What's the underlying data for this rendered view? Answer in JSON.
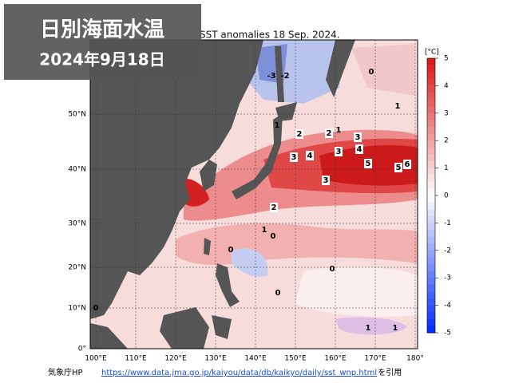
{
  "header": {
    "title": "日別海面水温",
    "date": "2024年9月18日"
  },
  "map": {
    "title": "SST anomalies 18 Sep. 2024.",
    "lon_labels": [
      "100°E",
      "110°E",
      "120°E",
      "130°E",
      "140°E",
      "150°E",
      "160°E",
      "170°E",
      "180°"
    ],
    "lat_labels": [
      "50°N",
      "40°N",
      "30°N",
      "20°N",
      "10°N",
      "0°"
    ],
    "colorbar": {
      "unit": "[°C]",
      "ticks": [
        5,
        4,
        3,
        2,
        1,
        0,
        -1,
        -2,
        -3,
        -4,
        -5
      ]
    },
    "contour_labels": [
      -3,
      -2,
      0,
      1,
      1,
      2,
      2,
      1,
      3,
      3,
      4,
      3,
      4,
      5,
      5,
      6,
      3,
      2,
      1,
      0,
      0,
      0,
      0,
      0,
      1,
      1
    ]
  },
  "footer": {
    "source": "気象庁HP",
    "url": "https://www.data.jma.go.jp/kaiyou/data/db/kaikyo/daily/sst_wnp.html",
    "suffix": "を引用"
  }
}
